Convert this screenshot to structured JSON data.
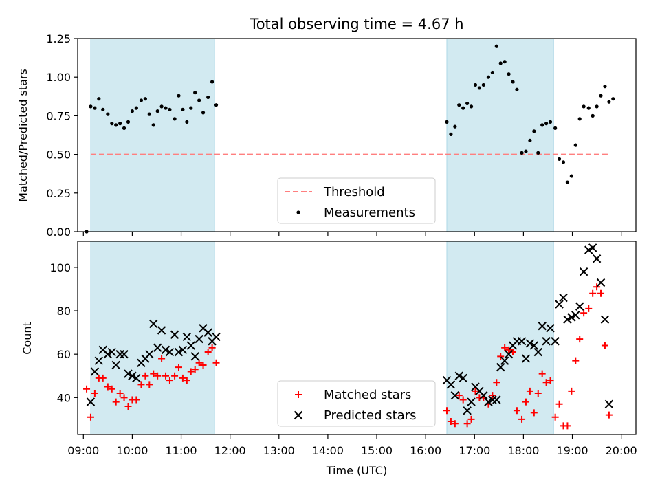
{
  "chart_data": {
    "title": "Total observing time = 4.67 h",
    "shared_x": {
      "label": "Time (UTC)",
      "range": [
        "08:53",
        "20:18"
      ],
      "ticks": [
        "09:00",
        "10:00",
        "11:00",
        "12:00",
        "13:00",
        "14:00",
        "15:00",
        "16:00",
        "17:00",
        "18:00",
        "19:00",
        "20:00"
      ]
    },
    "observing_windows": [
      {
        "start": "09:09",
        "end": "11:41"
      },
      {
        "start": "16:26",
        "end": "18:37"
      }
    ],
    "shade_color": "#add8e6",
    "panels": [
      {
        "type": "scatter",
        "ylabel": "Matched/Predicted stars",
        "ylim": [
          0,
          1.25
        ],
        "yticks": [
          "0.00",
          "0.25",
          "0.50",
          "0.75",
          "1.00",
          "1.25"
        ],
        "legend": {
          "placement": "lower center",
          "entries": [
            "Threshold",
            "Measurements"
          ]
        },
        "threshold": {
          "name": "Threshold",
          "value": 0.5,
          "x_start": "09:09",
          "x_end": "19:45",
          "color": "#ff7f7f",
          "style": "dashed"
        },
        "series": [
          {
            "name": "Measurements",
            "marker": "dot",
            "color": "#000000",
            "points": [
              [
                "09:04",
                0.0
              ],
              [
                "09:09",
                0.81
              ],
              [
                "09:14",
                0.8
              ],
              [
                "09:19",
                0.86
              ],
              [
                "09:24",
                0.79
              ],
              [
                "09:30",
                0.76
              ],
              [
                "09:35",
                0.7
              ],
              [
                "09:40",
                0.69
              ],
              [
                "09:45",
                0.7
              ],
              [
                "09:50",
                0.67
              ],
              [
                "09:55",
                0.71
              ],
              [
                "10:00",
                0.78
              ],
              [
                "10:05",
                0.8
              ],
              [
                "10:11",
                0.85
              ],
              [
                "10:16",
                0.86
              ],
              [
                "10:21",
                0.76
              ],
              [
                "10:26",
                0.69
              ],
              [
                "10:31",
                0.78
              ],
              [
                "10:36",
                0.81
              ],
              [
                "10:41",
                0.8
              ],
              [
                "10:46",
                0.79
              ],
              [
                "10:52",
                0.73
              ],
              [
                "10:57",
                0.88
              ],
              [
                "11:02",
                0.79
              ],
              [
                "11:07",
                0.71
              ],
              [
                "11:12",
                0.8
              ],
              [
                "11:17",
                0.9
              ],
              [
                "11:22",
                0.85
              ],
              [
                "11:27",
                0.77
              ],
              [
                "11:33",
                0.87
              ],
              [
                "11:38",
                0.97
              ],
              [
                "11:43",
                0.82
              ],
              [
                "16:26",
                0.71
              ],
              [
                "16:31",
                0.63
              ],
              [
                "16:36",
                0.68
              ],
              [
                "16:41",
                0.82
              ],
              [
                "16:46",
                0.8
              ],
              [
                "16:51",
                0.83
              ],
              [
                "16:56",
                0.81
              ],
              [
                "17:01",
                0.95
              ],
              [
                "17:06",
                0.93
              ],
              [
                "17:11",
                0.95
              ],
              [
                "17:17",
                1.0
              ],
              [
                "17:22",
                1.03
              ],
              [
                "17:27",
                1.2
              ],
              [
                "17:32",
                1.09
              ],
              [
                "17:37",
                1.1
              ],
              [
                "17:42",
                1.02
              ],
              [
                "17:47",
                0.97
              ],
              [
                "17:52",
                0.92
              ],
              [
                "17:58",
                0.51
              ],
              [
                "18:03",
                0.52
              ],
              [
                "18:08",
                0.59
              ],
              [
                "18:13",
                0.65
              ],
              [
                "18:18",
                0.51
              ],
              [
                "18:23",
                0.69
              ],
              [
                "18:28",
                0.7
              ],
              [
                "18:33",
                0.71
              ],
              [
                "18:39",
                0.67
              ],
              [
                "18:44",
                0.47
              ],
              [
                "18:49",
                0.45
              ],
              [
                "18:54",
                0.32
              ],
              [
                "18:59",
                0.36
              ],
              [
                "19:04",
                0.56
              ],
              [
                "19:09",
                0.73
              ],
              [
                "19:14",
                0.81
              ],
              [
                "19:20",
                0.8
              ],
              [
                "19:25",
                0.75
              ],
              [
                "19:30",
                0.81
              ],
              [
                "19:35",
                0.88
              ],
              [
                "19:40",
                0.94
              ],
              [
                "19:45",
                0.84
              ],
              [
                "19:50",
                0.86
              ]
            ]
          }
        ]
      },
      {
        "type": "scatter",
        "ylabel": "Count",
        "ylim": [
          23,
          112
        ],
        "yticks": [
          "40",
          "60",
          "80",
          "100"
        ],
        "legend": {
          "placement": "lower center",
          "entries": [
            "Matched stars",
            "Predicted stars"
          ]
        },
        "series": [
          {
            "name": "Matched stars",
            "marker": "plus",
            "color": "#ff0000",
            "points": [
              [
                "09:04",
                44
              ],
              [
                "09:09",
                31
              ],
              [
                "09:14",
                42
              ],
              [
                "09:19",
                49
              ],
              [
                "09:24",
                49
              ],
              [
                "09:30",
                45
              ],
              [
                "09:35",
                44
              ],
              [
                "09:40",
                38
              ],
              [
                "09:45",
                42
              ],
              [
                "09:50",
                40
              ],
              [
                "09:55",
                36
              ],
              [
                "10:00",
                39
              ],
              [
                "10:05",
                39
              ],
              [
                "10:11",
                46
              ],
              [
                "10:16",
                50
              ],
              [
                "10:21",
                46
              ],
              [
                "10:26",
                51
              ],
              [
                "10:31",
                50
              ],
              [
                "10:36",
                58
              ],
              [
                "10:41",
                50
              ],
              [
                "10:46",
                48
              ],
              [
                "10:52",
                50
              ],
              [
                "10:57",
                54
              ],
              [
                "11:02",
                49
              ],
              [
                "11:07",
                48
              ],
              [
                "11:12",
                52
              ],
              [
                "11:17",
                53
              ],
              [
                "11:22",
                56
              ],
              [
                "11:27",
                55
              ],
              [
                "11:33",
                61
              ],
              [
                "11:38",
                63
              ],
              [
                "11:43",
                56
              ],
              [
                "16:26",
                34
              ],
              [
                "16:31",
                29
              ],
              [
                "16:36",
                28
              ],
              [
                "16:41",
                41
              ],
              [
                "16:46",
                39
              ],
              [
                "16:51",
                28
              ],
              [
                "16:56",
                30
              ],
              [
                "17:01",
                43
              ],
              [
                "17:06",
                40
              ],
              [
                "17:11",
                40
              ],
              [
                "17:17",
                37
              ],
              [
                "17:22",
                41
              ],
              [
                "17:27",
                47
              ],
              [
                "17:32",
                59
              ],
              [
                "17:37",
                63
              ],
              [
                "17:42",
                62
              ],
              [
                "17:47",
                61
              ],
              [
                "17:52",
                34
              ],
              [
                "17:58",
                30
              ],
              [
                "18:03",
                38
              ],
              [
                "18:08",
                43
              ],
              [
                "18:13",
                33
              ],
              [
                "18:18",
                42
              ],
              [
                "18:23",
                51
              ],
              [
                "18:28",
                47
              ],
              [
                "18:33",
                48
              ],
              [
                "18:39",
                31
              ],
              [
                "18:44",
                37
              ],
              [
                "18:49",
                27
              ],
              [
                "18:54",
                27
              ],
              [
                "18:59",
                43
              ],
              [
                "19:04",
                57
              ],
              [
                "19:09",
                67
              ],
              [
                "19:14",
                79
              ],
              [
                "19:20",
                81
              ],
              [
                "19:25",
                88
              ],
              [
                "19:30",
                91
              ],
              [
                "19:35",
                88
              ],
              [
                "19:40",
                64
              ],
              [
                "19:45",
                32
              ]
            ]
          },
          {
            "name": "Predicted stars",
            "marker": "x",
            "color": "#000000",
            "points": [
              [
                "09:09",
                38
              ],
              [
                "09:14",
                52
              ],
              [
                "09:19",
                57
              ],
              [
                "09:24",
                62
              ],
              [
                "09:30",
                60
              ],
              [
                "09:35",
                61
              ],
              [
                "09:40",
                55
              ],
              [
                "09:45",
                60
              ],
              [
                "09:50",
                60
              ],
              [
                "09:55",
                51
              ],
              [
                "10:00",
                50
              ],
              [
                "10:05",
                49
              ],
              [
                "10:11",
                56
              ],
              [
                "10:16",
                58
              ],
              [
                "10:21",
                60
              ],
              [
                "10:26",
                74
              ],
              [
                "10:31",
                63
              ],
              [
                "10:36",
                71
              ],
              [
                "10:41",
                62
              ],
              [
                "10:46",
                61
              ],
              [
                "10:52",
                69
              ],
              [
                "10:57",
                61
              ],
              [
                "11:02",
                62
              ],
              [
                "11:07",
                68
              ],
              [
                "11:12",
                64
              ],
              [
                "11:17",
                59
              ],
              [
                "11:22",
                67
              ],
              [
                "11:27",
                72
              ],
              [
                "11:33",
                70
              ],
              [
                "11:38",
                66
              ],
              [
                "11:43",
                68
              ],
              [
                "16:26",
                48
              ],
              [
                "16:31",
                46
              ],
              [
                "16:36",
                41
              ],
              [
                "16:41",
                50
              ],
              [
                "16:46",
                49
              ],
              [
                "16:51",
                34
              ],
              [
                "16:56",
                38
              ],
              [
                "17:01",
                45
              ],
              [
                "17:06",
                43
              ],
              [
                "17:11",
                41
              ],
              [
                "17:17",
                38
              ],
              [
                "17:22",
                39
              ],
              [
                "17:27",
                39
              ],
              [
                "17:32",
                54
              ],
              [
                "17:37",
                57
              ],
              [
                "17:42",
                60
              ],
              [
                "17:47",
                64
              ],
              [
                "17:52",
                66
              ],
              [
                "17:58",
                66
              ],
              [
                "18:03",
                58
              ],
              [
                "18:08",
                65
              ],
              [
                "18:13",
                64
              ],
              [
                "18:18",
                61
              ],
              [
                "18:23",
                73
              ],
              [
                "18:28",
                66
              ],
              [
                "18:33",
                72
              ],
              [
                "18:39",
                66
              ],
              [
                "18:44",
                83
              ],
              [
                "18:49",
                86
              ],
              [
                "18:54",
                76
              ],
              [
                "18:59",
                77
              ],
              [
                "19:04",
                78
              ],
              [
                "19:09",
                82
              ],
              [
                "19:14",
                98
              ],
              [
                "19:20",
                108
              ],
              [
                "19:25",
                109
              ],
              [
                "19:30",
                104
              ],
              [
                "19:35",
                93
              ],
              [
                "19:40",
                76
              ],
              [
                "19:45",
                37
              ]
            ]
          }
        ]
      }
    ]
  }
}
